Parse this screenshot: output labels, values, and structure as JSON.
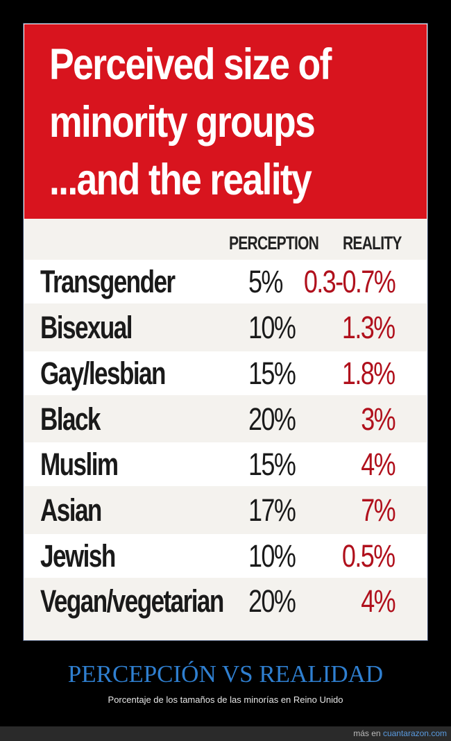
{
  "infographic": {
    "title_lines": [
      "Perceived size of",
      "minority groups",
      "...and the reality"
    ],
    "columns": {
      "perception": "PERCEPTION",
      "reality": "REALITY"
    },
    "rows": [
      {
        "label": "Transgender",
        "perception": "5%",
        "reality": "0.3-0.7%"
      },
      {
        "label": "Bisexual",
        "perception": "10%",
        "reality": "1.3%"
      },
      {
        "label": "Gay/lesbian",
        "perception": "15%",
        "reality": "1.8%"
      },
      {
        "label": "Black",
        "perception": "20%",
        "reality": "3%"
      },
      {
        "label": "Muslim",
        "perception": "15%",
        "reality": "4%"
      },
      {
        "label": "Asian",
        "perception": "17%",
        "reality": "7%"
      },
      {
        "label": "Jewish",
        "perception": "10%",
        "reality": "0.5%"
      },
      {
        "label": "Vegan/vegetarian",
        "perception": "20%",
        "reality": "4%"
      }
    ]
  },
  "caption": {
    "title": "PERCEPCIÓN VS REALIDAD",
    "subtitle": "Porcentaje de los tamaños de las minorías en Reino Unido"
  },
  "footer": {
    "prefix": "más en",
    "site": "cuantarazon.com"
  },
  "colors": {
    "header_red": "#d8141e",
    "reality_red": "#b0101c",
    "caption_blue": "#2f7fd0"
  }
}
